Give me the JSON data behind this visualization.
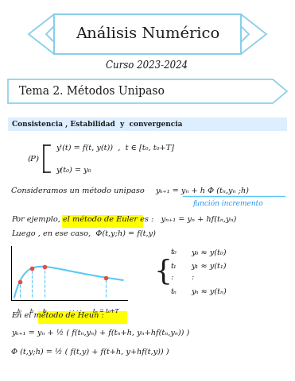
{
  "bg_color": "#ffffff",
  "page_width": 3.71,
  "page_height": 4.8,
  "ribbon_title": "Análisis Numérico",
  "ribbon_subtitle": "Curso 2023-2024",
  "section_title": "Tema 2. Métodos Unipaso",
  "subsection_title": "Consistencia , Estabilidad  y  convergencia",
  "subsection_bg": "#ddeeff",
  "ribbon_edge": "#87CEEB",
  "text_color": "#1a1a1a",
  "blue_color": "#5BC8F5",
  "ann_color": "#2196F3",
  "highlight_color": "#FFFF00",
  "curve_color": "#5BC8F5",
  "dot_color": "#e74c3c"
}
